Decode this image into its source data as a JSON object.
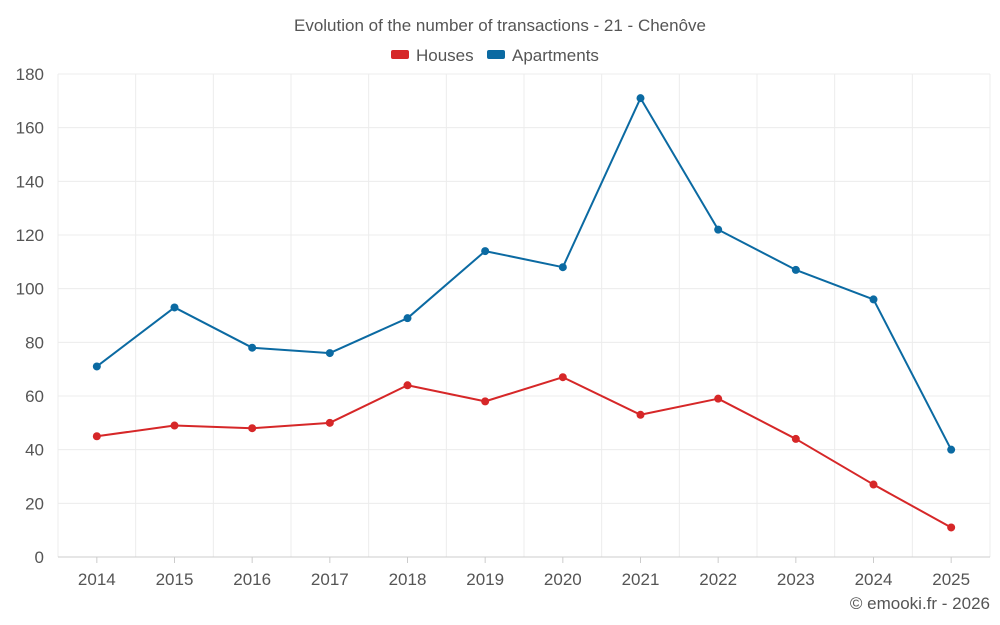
{
  "chart_data": {
    "type": "line",
    "title": "Evolution of the number of transactions - 21 - Chenôve",
    "categories": [
      "2014",
      "2015",
      "2016",
      "2017",
      "2018",
      "2019",
      "2020",
      "2021",
      "2022",
      "2023",
      "2024",
      "2025"
    ],
    "series": [
      {
        "name": "Houses",
        "color": "#d62728",
        "values": [
          45,
          49,
          48,
          50,
          64,
          58,
          67,
          53,
          59,
          44,
          27,
          11
        ]
      },
      {
        "name": "Apartments",
        "color": "#0b6aa2",
        "values": [
          71,
          93,
          78,
          76,
          89,
          114,
          108,
          171,
          122,
          107,
          96,
          40
        ]
      }
    ],
    "ylim": [
      0,
      180
    ],
    "yticks": [
      0,
      20,
      40,
      60,
      80,
      100,
      120,
      140,
      160,
      180
    ],
    "xlabel": "",
    "ylabel": "",
    "grid": true,
    "legend": "top-center"
  },
  "credit": "© emooki.fr - 2026"
}
